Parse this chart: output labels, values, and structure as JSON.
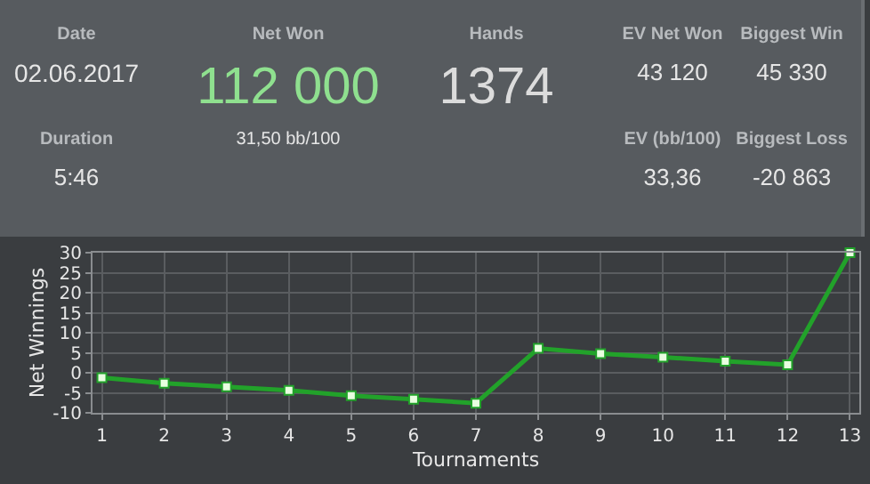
{
  "chart_data": [
    {
      "type": "other",
      "annotations": [
        "Date",
        "02.06.2017",
        "Duration",
        "5:46",
        "Net Won",
        "112 000",
        "31,50 bb/100",
        "Hands",
        "1374",
        "EV Net Won",
        "43 120",
        "EV (bb/100)",
        "33,36",
        "Biggest Win",
        "45 330",
        "Biggest Loss",
        "-20 863"
      ]
    },
    {
      "type": "line",
      "xlabel": "Tournaments",
      "ylabel": "Net Winnings",
      "x": [
        1,
        2,
        3,
        4,
        5,
        6,
        7,
        8,
        9,
        10,
        11,
        12,
        13
      ],
      "series": [
        {
          "color": "#22a22a",
          "values": [
            -1.2,
            -2.6,
            -3.5,
            -4.4,
            -5.7,
            -6.6,
            -7.6,
            6.1,
            4.8,
            3.9,
            2.9,
            2.0,
            30
          ]
        }
      ],
      "xlim": [
        0.85,
        13.15
      ],
      "xticks": [
        1,
        2,
        3,
        4,
        5,
        6,
        7,
        8,
        9,
        10,
        11,
        12,
        13
      ],
      "ylim": [
        -10,
        30
      ],
      "yticks": [
        -10,
        -5,
        0,
        5,
        10,
        15,
        20,
        25,
        30
      ],
      "grid": true,
      "marker": "square",
      "line_style": "solid"
    }
  ]
}
